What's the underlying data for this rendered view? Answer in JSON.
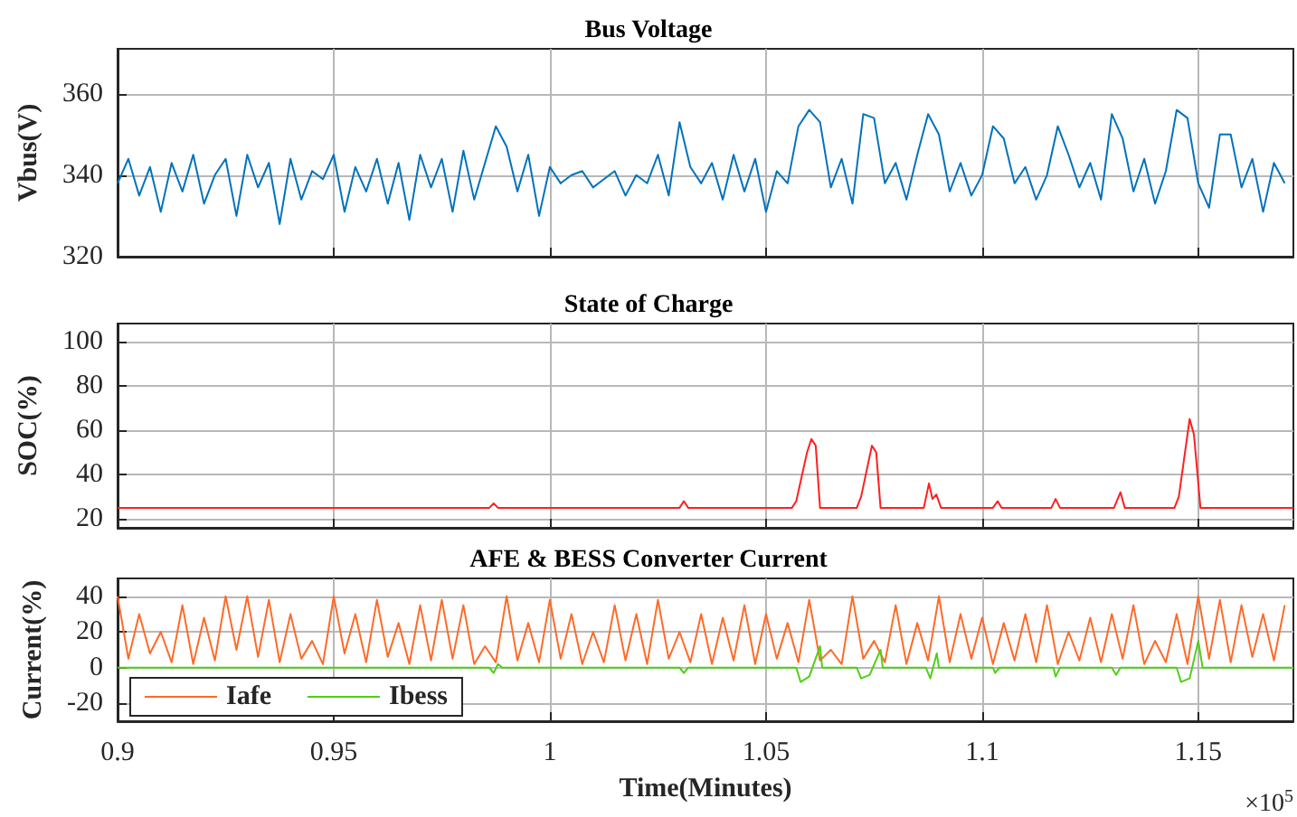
{
  "chart_data": [
    {
      "type": "line",
      "title": "Bus Voltage",
      "ylabel": "Vbus(V)",
      "xlim": [
        0.9,
        1.172
      ],
      "xticks": [
        0.9,
        0.95,
        1,
        1.05,
        1.1,
        1.15
      ],
      "ylim": [
        320,
        371
      ],
      "yticks": [
        320,
        340,
        360
      ],
      "grid": true,
      "tick_labels": "y",
      "marker": "none",
      "x": [
        0.9,
        0.9025,
        0.905,
        0.9075,
        0.91,
        0.9125,
        0.915,
        0.9175,
        0.92,
        0.9225,
        0.925,
        0.9275,
        0.93,
        0.9325,
        0.935,
        0.9375,
        0.94,
        0.9425,
        0.945,
        0.9475,
        0.95,
        0.9525,
        0.955,
        0.9575,
        0.96,
        0.9625,
        0.965,
        0.9675,
        0.97,
        0.9725,
        0.975,
        0.9775,
        0.98,
        0.9825,
        0.985,
        0.9875,
        0.99,
        0.9925,
        0.995,
        0.9975,
        1,
        1.0025,
        1.005,
        1.0075,
        1.01,
        1.0125,
        1.015,
        1.0175,
        1.02,
        1.0225,
        1.025,
        1.0275,
        1.03,
        1.0325,
        1.035,
        1.0375,
        1.04,
        1.0425,
        1.045,
        1.0475,
        1.05,
        1.0525,
        1.055,
        1.0575,
        1.06,
        1.0625,
        1.065,
        1.0675,
        1.07,
        1.0725,
        1.075,
        1.0775,
        1.08,
        1.0825,
        1.085,
        1.0875,
        1.09,
        1.0925,
        1.095,
        1.0975,
        1.1,
        1.1025,
        1.105,
        1.1075,
        1.11,
        1.1125,
        1.115,
        1.1175,
        1.12,
        1.1225,
        1.125,
        1.1275,
        1.13,
        1.1325,
        1.135,
        1.1375,
        1.14,
        1.1425,
        1.145,
        1.1475,
        1.15,
        1.1525,
        1.155,
        1.1575,
        1.16,
        1.1625,
        1.165,
        1.1675,
        1.17
      ],
      "series": [
        {
          "color": "#0072bd",
          "values": [
            338,
            344,
            335,
            342,
            331,
            343,
            336,
            345,
            333,
            340,
            344,
            330,
            345,
            337,
            343,
            328,
            344,
            334,
            341,
            339,
            345,
            331,
            342,
            336,
            344,
            333,
            343,
            329,
            345,
            337,
            344,
            331,
            346,
            334,
            343,
            352,
            347,
            336,
            345,
            330,
            342,
            338,
            340,
            341,
            337,
            339,
            341,
            335,
            340,
            338,
            345,
            335,
            353,
            342,
            338,
            343,
            334,
            345,
            336,
            344,
            331,
            341,
            338,
            352,
            356,
            353,
            337,
            344,
            333,
            355,
            354,
            338,
            343,
            334,
            345,
            355,
            350,
            336,
            343,
            335,
            340,
            352,
            349,
            338,
            342,
            334,
            340,
            352,
            345,
            337,
            343,
            334,
            355,
            349,
            336,
            344,
            333,
            341,
            356,
            354,
            338,
            332,
            350,
            350,
            337,
            344,
            331,
            343,
            338
          ]
        }
      ]
    },
    {
      "type": "line",
      "title": "State of Charge",
      "ylabel": "SOC(%)",
      "xlim": [
        0.9,
        1.172
      ],
      "xticks": [
        0.9,
        0.95,
        1,
        1.05,
        1.1,
        1.15
      ],
      "ylim": [
        16,
        108
      ],
      "yticks": [
        20,
        40,
        60,
        80,
        100
      ],
      "grid": true,
      "tick_labels": "y",
      "marker": "none",
      "x": [
        0.9,
        0.986,
        0.987,
        0.988,
        1.03,
        1.031,
        1.032,
        1.056,
        1.057,
        1.0595,
        1.0605,
        1.0615,
        1.0625,
        1.071,
        1.072,
        1.0745,
        1.0755,
        1.0765,
        1.0865,
        1.0877,
        1.0885,
        1.0894,
        1.0905,
        1.1025,
        1.1036,
        1.1045,
        1.116,
        1.117,
        1.118,
        1.1305,
        1.132,
        1.133,
        1.1445,
        1.1455,
        1.148,
        1.149,
        1.1505,
        1.172
      ],
      "series": [
        {
          "color": "#ff1f1f",
          "values": [
            25,
            25,
            27,
            25,
            25,
            28,
            25,
            25,
            28,
            50,
            56,
            53,
            25,
            25,
            30,
            53,
            50,
            25,
            25,
            36,
            29,
            31,
            25,
            25,
            28,
            25,
            25,
            29,
            25,
            25,
            32,
            25,
            25,
            30,
            65,
            58,
            25,
            25
          ]
        }
      ]
    },
    {
      "type": "line",
      "title": "AFE & BESS Converter Current",
      "xlabel": "Time(Minutes)",
      "ylabel": "Current(%)",
      "xlim": [
        0.9,
        1.172
      ],
      "xticks": [
        0.9,
        0.95,
        1,
        1.05,
        1.1,
        1.15
      ],
      "ylim": [
        -30,
        50
      ],
      "yticks": [
        -20,
        0,
        20,
        40
      ],
      "grid": true,
      "legend": "bottom left",
      "marker": "none",
      "annotations": [
        "×10$^{5}$"
      ],
      "x": [
        0.9,
        0.9025,
        0.905,
        0.9075,
        0.91,
        0.9125,
        0.915,
        0.9175,
        0.92,
        0.9225,
        0.925,
        0.9275,
        0.93,
        0.9325,
        0.935,
        0.9375,
        0.94,
        0.9425,
        0.945,
        0.9475,
        0.95,
        0.9525,
        0.955,
        0.9575,
        0.96,
        0.9625,
        0.965,
        0.9675,
        0.97,
        0.9725,
        0.975,
        0.9775,
        0.98,
        0.9825,
        0.985,
        0.9875,
        0.99,
        0.9925,
        0.995,
        0.9975,
        1,
        1.0025,
        1.005,
        1.0075,
        1.01,
        1.0125,
        1.015,
        1.0175,
        1.02,
        1.0225,
        1.025,
        1.0275,
        1.03,
        1.0325,
        1.035,
        1.0375,
        1.04,
        1.0425,
        1.045,
        1.0475,
        1.05,
        1.0525,
        1.055,
        1.0575,
        1.06,
        1.0625,
        1.065,
        1.0675,
        1.07,
        1.0725,
        1.075,
        1.0775,
        1.08,
        1.0825,
        1.085,
        1.0875,
        1.09,
        1.0925,
        1.095,
        1.0975,
        1.1,
        1.1025,
        1.105,
        1.1075,
        1.11,
        1.1125,
        1.115,
        1.1175,
        1.12,
        1.1225,
        1.125,
        1.1275,
        1.13,
        1.1325,
        1.135,
        1.1375,
        1.14,
        1.1425,
        1.145,
        1.1475,
        1.15,
        1.1525,
        1.155,
        1.1575,
        1.16,
        1.1625,
        1.165,
        1.1675,
        1.17
      ],
      "series": [
        {
          "name": "Iafe",
          "color": "#ff6a28",
          "values": [
            40,
            5,
            30,
            8,
            20,
            3,
            35,
            2,
            28,
            4,
            40,
            10,
            40,
            6,
            38,
            3,
            30,
            5,
            15,
            2,
            40,
            8,
            30,
            3,
            38,
            6,
            25,
            2,
            35,
            4,
            38,
            5,
            35,
            2,
            12,
            3,
            40,
            4,
            25,
            3,
            38,
            5,
            30,
            2,
            20,
            3,
            35,
            4,
            30,
            2,
            38,
            5,
            20,
            3,
            30,
            2,
            28,
            4,
            35,
            2,
            30,
            5,
            25,
            3,
            38,
            4,
            10,
            2,
            40,
            5,
            15,
            3,
            35,
            2,
            25,
            4,
            40,
            3,
            30,
            5,
            28,
            2,
            25,
            4,
            30,
            3,
            35,
            2,
            20,
            4,
            28,
            3,
            30,
            5,
            35,
            2,
            15,
            3,
            30,
            2,
            40,
            5,
            38,
            3,
            35,
            6,
            30,
            4,
            35
          ]
        },
        {
          "name": "Ibess",
          "color": "#4fcf16",
          "x": [
            0.9,
            0.986,
            0.987,
            0.988,
            0.989,
            1.03,
            1.031,
            1.032,
            1.057,
            1.058,
            1.06,
            1.0625,
            1.063,
            1.071,
            1.072,
            1.074,
            1.0765,
            1.077,
            1.087,
            1.088,
            1.0895,
            1.09,
            1.1025,
            1.103,
            1.104,
            1.1165,
            1.117,
            1.118,
            1.13,
            1.131,
            1.132,
            1.145,
            1.146,
            1.148,
            1.15,
            1.151,
            1.172
          ],
          "values": [
            0,
            0,
            -3,
            2,
            0,
            0,
            -3,
            0,
            0,
            -8,
            -5,
            12,
            0,
            0,
            -6,
            -4,
            10,
            0,
            0,
            -6,
            8,
            0,
            0,
            -3,
            0,
            0,
            -5,
            0,
            0,
            -4,
            0,
            0,
            -8,
            -6,
            15,
            0,
            0
          ]
        }
      ]
    }
  ]
}
